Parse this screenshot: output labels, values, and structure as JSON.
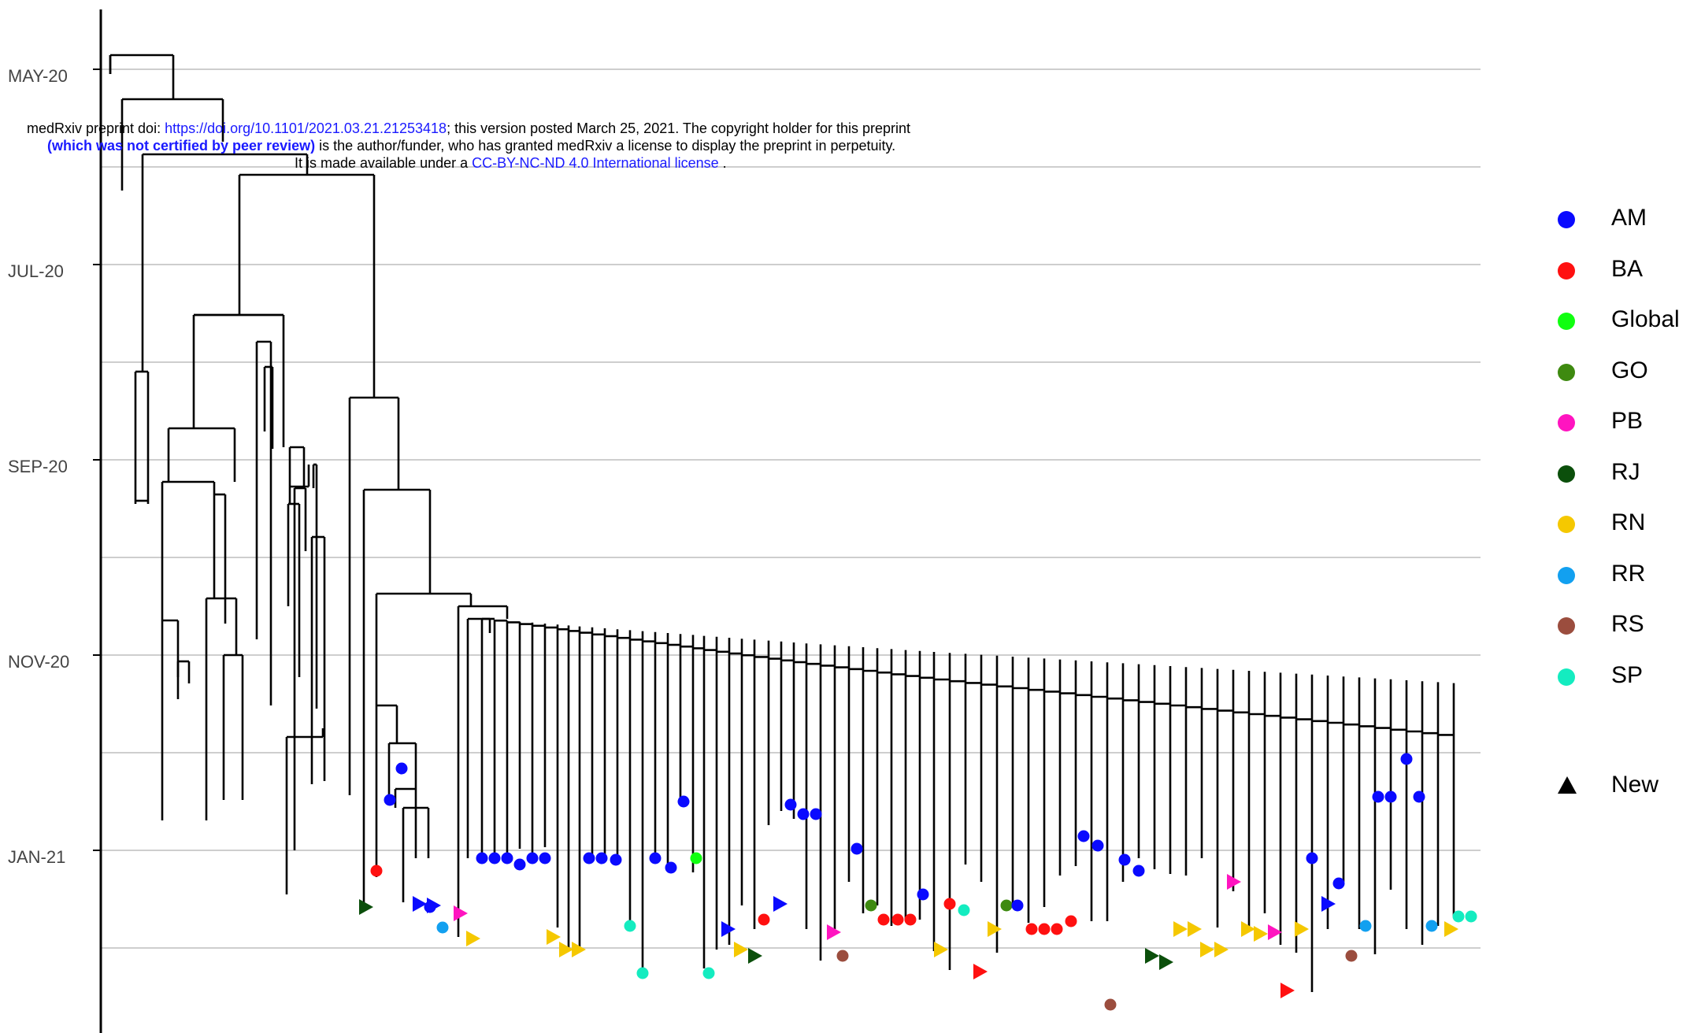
{
  "y_axis": {
    "ticks": [
      "MAY-20",
      "JUL-20",
      "SEP-20",
      "NOV-20",
      "JAN-21"
    ]
  },
  "watermark": {
    "line1_prefix": "medRxiv preprint doi: ",
    "line1_link": "https://doi.org/10.1101/2021.03.21.21253418",
    "line1_suffix": "; this version posted March 25, 2021. The copyright holder for this preprint",
    "line2_bold": "(which was not certified by peer review)",
    "line2_suffix": " is the author/funder, who has granted medRxiv a license to display the preprint in perpetuity.",
    "line3_prefix": "It is made available under a ",
    "line3_link": "CC-BY-NC-ND 4.0 International license",
    "line3_suffix": " ."
  },
  "legend": {
    "items": [
      {
        "label": "AM",
        "color": "#0a0aff"
      },
      {
        "label": "BA",
        "color": "#ff1010"
      },
      {
        "label": "Global",
        "color": "#10ff10"
      },
      {
        "label": "GO",
        "color": "#3e8a10"
      },
      {
        "label": "PB",
        "color": "#ff14c0"
      },
      {
        "label": "RJ",
        "color": "#0b4f0b"
      },
      {
        "label": "RN",
        "color": "#f5c800"
      },
      {
        "label": "RR",
        "color": "#12a0f0"
      },
      {
        "label": "RS",
        "color": "#9b4d3e"
      },
      {
        "label": "SP",
        "color": "#14ecc0"
      }
    ],
    "shape_label": "New"
  },
  "colors": {
    "AM": "#0a0aff",
    "BA": "#ff1010",
    "Global": "#10ff10",
    "GO": "#3e8a10",
    "PB": "#ff14c0",
    "RJ": "#0b4f0b",
    "RN": "#f5c800",
    "RR": "#12a0f0",
    "RS": "#9b4d3e",
    "SP": "#14ecc0",
    "grid": "#bdbdbd",
    "branch": "#000000"
  }
}
